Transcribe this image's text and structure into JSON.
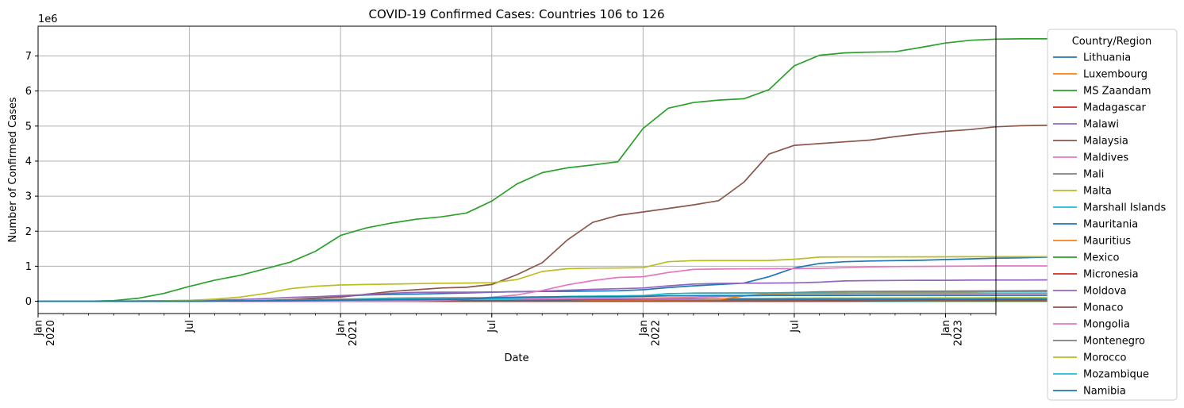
{
  "chart_data": {
    "type": "line",
    "title": "COVID-19 Confirmed Cases: Countries 106 to 126",
    "xlabel": "Date",
    "ylabel": "Number of Confirmed Cases",
    "y_scale_label": "1e6",
    "ylim": [
      -350000,
      7850000
    ],
    "y_ticks": [
      0,
      1,
      2,
      3,
      4,
      5,
      6,
      7
    ],
    "x_range": [
      "2020-01",
      "2023-03"
    ],
    "x_major_ticks": [
      {
        "month": "2020-01",
        "label": "Jan",
        "sublabel": "2020"
      },
      {
        "month": "2020-07",
        "label": "Jul",
        "sublabel": ""
      },
      {
        "month": "2021-01",
        "label": "Jan",
        "sublabel": "2021"
      },
      {
        "month": "2021-07",
        "label": "Jul",
        "sublabel": ""
      },
      {
        "month": "2022-01",
        "label": "Jan",
        "sublabel": "2022"
      },
      {
        "month": "2022-07",
        "label": "Jul",
        "sublabel": ""
      },
      {
        "month": "2023-01",
        "label": "Jan",
        "sublabel": "2023"
      }
    ],
    "grid": true,
    "legend_title": "Country/Region",
    "legend_position": "outside-right",
    "series": [
      {
        "name": "Lithuania",
        "color": "#1f77b4",
        "values": [
          0,
          0,
          0,
          1500,
          1700,
          1800,
          1900,
          2500,
          4000,
          7000,
          30000,
          80000,
          140000,
          180000,
          195000,
          205000,
          220000,
          240000,
          260000,
          275000,
          280000,
          285000,
          290000,
          300000,
          330000,
          390000,
          440000,
          480000,
          520000,
          700000,
          950000,
          1080000,
          1130000,
          1150000,
          1160000,
          1170000,
          1190000,
          1210000,
          1230000,
          1240000,
          1260000,
          1270000,
          1280000,
          1290000,
          1300000,
          1300000
        ]
      },
      {
        "name": "Luxembourg",
        "color": "#ff7f0e",
        "values": [
          0,
          0,
          2200,
          3800,
          4000,
          4200,
          5000,
          7000,
          7800,
          9000,
          20000,
          38000,
          45000,
          48000,
          52000,
          58000,
          64000,
          68000,
          70000,
          71000,
          72000,
          75000,
          80000,
          85000,
          90000,
          100000,
          110000,
          130000,
          160000,
          200000,
          240000,
          260000,
          270000,
          275000,
          280000,
          285000,
          290000,
          295000,
          300000,
          305000,
          310000,
          315000,
          315000,
          316000,
          317000,
          318000
        ]
      },
      {
        "name": "MS Zaandam",
        "color": "#2ca02c",
        "values": [
          0,
          0,
          9,
          9,
          9,
          9,
          9,
          9,
          9,
          9,
          9,
          9,
          9,
          9,
          9,
          9,
          9,
          9,
          9,
          9,
          9,
          9,
          9,
          9,
          9,
          9,
          9,
          9,
          9,
          9,
          9,
          9,
          9,
          9,
          9,
          9,
          9,
          9,
          9,
          9,
          9,
          9,
          9,
          9,
          9,
          9
        ]
      },
      {
        "name": "Madagascar",
        "color": "#d62728",
        "values": [
          0,
          0,
          57,
          130,
          800,
          2000,
          9000,
          15000,
          16000,
          17000,
          17300,
          17600,
          17900,
          18500,
          19500,
          22000,
          35000,
          40000,
          41000,
          41500,
          42000,
          42500,
          42800,
          43000,
          43500,
          45000,
          50000,
          58000,
          62000,
          63000,
          64000,
          64500,
          65000,
          65500,
          66000,
          66500,
          66800,
          67000,
          67200,
          67500,
          67700,
          67800,
          67900,
          68000,
          68000,
          68100
        ]
      },
      {
        "name": "Malawi",
        "color": "#9467bd",
        "values": [
          0,
          0,
          0,
          40,
          300,
          1000,
          3500,
          5500,
          5800,
          5900,
          6000,
          6100,
          6500,
          16000,
          32000,
          33500,
          34000,
          34500,
          35000,
          35500,
          37000,
          42000,
          52000,
          61000,
          61800,
          62000,
          62500,
          70000,
          82000,
          84000,
          85000,
          86000,
          86500,
          87000,
          87200,
          87500,
          87700,
          87900,
          88000,
          88100,
          88200,
          88300,
          88500,
          88500,
          88600,
          88700
        ]
      },
      {
        "name": "Malaysia",
        "color": "#8c564b",
        "values": [
          0,
          20,
          2800,
          6000,
          7800,
          8600,
          8700,
          9300,
          10500,
          25000,
          50000,
          90000,
          120000,
          200000,
          280000,
          330000,
          380000,
          400000,
          480000,
          760000,
          1100000,
          1750000,
          2250000,
          2450000,
          2550000,
          2650000,
          2750000,
          2870000,
          3400000,
          4200000,
          4450000,
          4500000,
          4550000,
          4600000,
          4700000,
          4780000,
          4850000,
          4900000,
          4980000,
          5010000,
          5020000,
          5030000,
          5030000,
          5040000,
          5040000,
          5040000
        ]
      },
      {
        "name": "Maldives",
        "color": "#e377c2",
        "values": [
          0,
          0,
          16,
          200,
          1700,
          2300,
          3700,
          6500,
          10000,
          11500,
          12500,
          13500,
          14500,
          15500,
          17000,
          21000,
          28000,
          50000,
          70000,
          75000,
          78000,
          80000,
          82000,
          84000,
          86000,
          92000,
          100000,
          130000,
          160000,
          170000,
          175000,
          178000,
          180000,
          181000,
          182000,
          183000,
          184000,
          185000,
          185500,
          186000,
          186200,
          186400,
          186500,
          186600,
          186700,
          186800
        ]
      },
      {
        "name": "Mali",
        "color": "#7f7f7f",
        "values": [
          0,
          0,
          30,
          550,
          1300,
          2100,
          2500,
          2700,
          3100,
          3400,
          4000,
          5500,
          7000,
          8000,
          8500,
          10000,
          13500,
          14300,
          14400,
          14500,
          14600,
          14800,
          15000,
          16000,
          17000,
          18000,
          20000,
          28000,
          30000,
          30500,
          31000,
          31200,
          31300,
          31400,
          31500,
          31600,
          31700,
          32000,
          32300,
          32600,
          32700,
          32800,
          32800,
          32900,
          32900,
          33000
        ]
      },
      {
        "name": "Malta",
        "color": "#bcbd22",
        "values": [
          0,
          0,
          160,
          450,
          600,
          650,
          700,
          2000,
          3200,
          4500,
          8000,
          11500,
          12500,
          17000,
          25000,
          30000,
          30500,
          30600,
          30700,
          31000,
          31500,
          33000,
          36000,
          37000,
          37500,
          38000,
          39000,
          68000,
          80000,
          88000,
          92000,
          95000,
          96000,
          97000,
          98000,
          99000,
          100000,
          101000,
          102000,
          103000,
          104000,
          105000,
          106000,
          107000,
          107500,
          108000
        ]
      },
      {
        "name": "Marshall Islands",
        "color": "#17becf",
        "values": [
          0,
          0,
          0,
          0,
          0,
          0,
          0,
          0,
          0,
          0,
          4,
          4,
          4,
          4,
          4,
          4,
          4,
          4,
          4,
          4,
          4,
          4,
          4,
          4,
          4,
          4,
          4,
          7,
          9,
          13,
          15,
          16,
          17,
          18,
          19,
          20,
          15500,
          15600,
          15700,
          15800,
          15900,
          15900,
          16000,
          16000,
          16000,
          16000
        ]
      },
      {
        "name": "Mauritania",
        "color": "#1f77b4",
        "values": [
          0,
          0,
          6,
          8,
          250,
          4000,
          6000,
          7000,
          7500,
          7600,
          8000,
          9000,
          12000,
          16000,
          17000,
          17300,
          18000,
          18500,
          19000,
          20000,
          24000,
          33000,
          36000,
          37000,
          38000,
          39000,
          41000,
          57000,
          58000,
          58500,
          59000,
          60000,
          61000,
          62000,
          62500,
          63000,
          63000,
          63000,
          63200,
          63300,
          63400,
          63500,
          63600,
          63700,
          63700,
          63800
        ]
      },
      {
        "name": "Mauritius",
        "color": "#ff7f0e",
        "values": [
          0,
          0,
          140,
          330,
          335,
          340,
          342,
          344,
          360,
          420,
          480,
          520,
          560,
          600,
          1200,
          1300,
          1300,
          1350,
          1500,
          1700,
          3000,
          6000,
          15000,
          20000,
          28000,
          33000,
          37000,
          50000,
          150000,
          200000,
          220000,
          225000,
          230000,
          240000,
          250000,
          260000,
          265000,
          270000,
          280000,
          282000,
          285000,
          288000,
          290000,
          292000,
          295000,
          296000
        ]
      },
      {
        "name": "Mexico",
        "color": "#2ca02c",
        "values": [
          0,
          5,
          1000,
          20000,
          90000,
          225000,
          425000,
          600000,
          740000,
          925000,
          1115000,
          1425000,
          1880000,
          2090000,
          2230000,
          2340000,
          2410000,
          2520000,
          2860000,
          3350000,
          3670000,
          3810000,
          3890000,
          3980000,
          4930000,
          5510000,
          5670000,
          5740000,
          5780000,
          6040000,
          6720000,
          7020000,
          7090000,
          7110000,
          7120000,
          7240000,
          7370000,
          7450000,
          7480000,
          7490000,
          7490000,
          7490000,
          7490000,
          7490000,
          7490000,
          7490000
        ]
      },
      {
        "name": "Micronesia",
        "color": "#d62728",
        "values": [
          0,
          0,
          0,
          0,
          0,
          0,
          0,
          0,
          0,
          0,
          1,
          1,
          1,
          1,
          1,
          1,
          1,
          1,
          1,
          1,
          1,
          1,
          1,
          1,
          1,
          1,
          1,
          1,
          1,
          1,
          22,
          40,
          1500,
          5000,
          14000,
          22000,
          22300,
          22500,
          23000,
          23500,
          23800,
          24000,
          24200,
          24300,
          24400,
          24500
        ]
      },
      {
        "name": "Moldova",
        "color": "#9467bd",
        "values": [
          0,
          0,
          350,
          4000,
          9000,
          16000,
          22000,
          35000,
          50000,
          75000,
          110000,
          130000,
          165000,
          190000,
          230000,
          255000,
          260000,
          260000,
          263000,
          270000,
          290000,
          315000,
          340000,
          360000,
          380000,
          440000,
          490000,
          510000,
          515000,
          520000,
          525000,
          545000,
          580000,
          590000,
          595000,
          598000,
          600000,
          603000,
          605000,
          607000,
          610000,
          610000,
          610000,
          610000,
          610000,
          610000
        ]
      },
      {
        "name": "Monaco",
        "color": "#8c564b",
        "values": [
          0,
          0,
          50,
          95,
          99,
          100,
          140,
          170,
          300,
          600,
          900,
          1300,
          1600,
          2000,
          2300,
          2400,
          2500,
          2560,
          2600,
          2700,
          3000,
          3200,
          3300,
          3500,
          5000,
          9000,
          10500,
          11000,
          11500,
          12000,
          13000,
          14000,
          14500,
          15000,
          15500,
          16000,
          16300,
          16500,
          16700,
          16800,
          16900,
          17000,
          17000,
          17100,
          17100,
          17200
        ]
      },
      {
        "name": "Mongolia",
        "color": "#e377c2",
        "values": [
          0,
          0,
          10,
          38,
          180,
          220,
          300,
          300,
          310,
          330,
          380,
          900,
          1600,
          2500,
          3000,
          5000,
          25000,
          60000,
          120000,
          180000,
          310000,
          470000,
          590000,
          680000,
          700000,
          820000,
          910000,
          920000,
          925000,
          930000,
          933000,
          940000,
          960000,
          980000,
          990000,
          995000,
          1000000,
          1005000,
          1008000,
          1010000,
          1010000,
          1010000,
          1010000,
          1010000,
          1010000,
          1010000
        ]
      },
      {
        "name": "Montenegro",
        "color": "#7f7f7f",
        "values": [
          0,
          0,
          100,
          320,
          320,
          330,
          2500,
          4000,
          9000,
          20000,
          33000,
          45000,
          58000,
          72000,
          90000,
          97000,
          99000,
          100000,
          100500,
          102000,
          110000,
          130000,
          140000,
          150000,
          160000,
          210000,
          235000,
          237000,
          238000,
          240000,
          250000,
          270000,
          280000,
          283000,
          285000,
          286000,
          287000,
          288000,
          288500,
          289000,
          289500,
          290000,
          290000,
          290000,
          290000,
          290000
        ]
      },
      {
        "name": "Morocco",
        "color": "#bcbd22",
        "values": [
          0,
          0,
          650,
          4500,
          7800,
          12000,
          25000,
          60000,
          120000,
          220000,
          360000,
          430000,
          465000,
          480000,
          490000,
          505000,
          515000,
          520000,
          530000,
          620000,
          850000,
          930000,
          945000,
          950000,
          960000,
          1130000,
          1160000,
          1163000,
          1164000,
          1165000,
          1200000,
          1260000,
          1265000,
          1266000,
          1267000,
          1268000,
          1270000,
          1271000,
          1272000,
          1273000,
          1274000,
          1275000,
          1276000,
          1277000,
          1278000,
          1279000
        ]
      },
      {
        "name": "Mozambique",
        "color": "#17becf",
        "values": [
          0,
          0,
          8,
          80,
          250,
          900,
          2200,
          3800,
          8500,
          14000,
          17000,
          19000,
          30000,
          55000,
          68000,
          69500,
          70000,
          70500,
          71000,
          82000,
          120000,
          140000,
          145000,
          150000,
          160000,
          220000,
          225000,
          226000,
          227000,
          228000,
          229000,
          230000,
          230500,
          231000,
          231500,
          232000,
          232500,
          233000,
          233300,
          233500,
          233600,
          233700,
          233800,
          233900,
          234000,
          234000
        ]
      },
      {
        "name": "Namibia",
        "color": "#1f77b4",
        "values": [
          0,
          0,
          10,
          16,
          25,
          110,
          1000,
          7000,
          11000,
          12500,
          14000,
          24000,
          30000,
          37000,
          42000,
          47000,
          48000,
          60000,
          100000,
          120000,
          125000,
          127000,
          128000,
          129000,
          140000,
          155000,
          158000,
          159000,
          160000,
          165000,
          168000,
          169000,
          169500,
          170000,
          170500,
          171000,
          171000,
          171100,
          171200,
          171300,
          171400,
          171500,
          171500,
          171600,
          171600,
          171700
        ]
      }
    ]
  }
}
